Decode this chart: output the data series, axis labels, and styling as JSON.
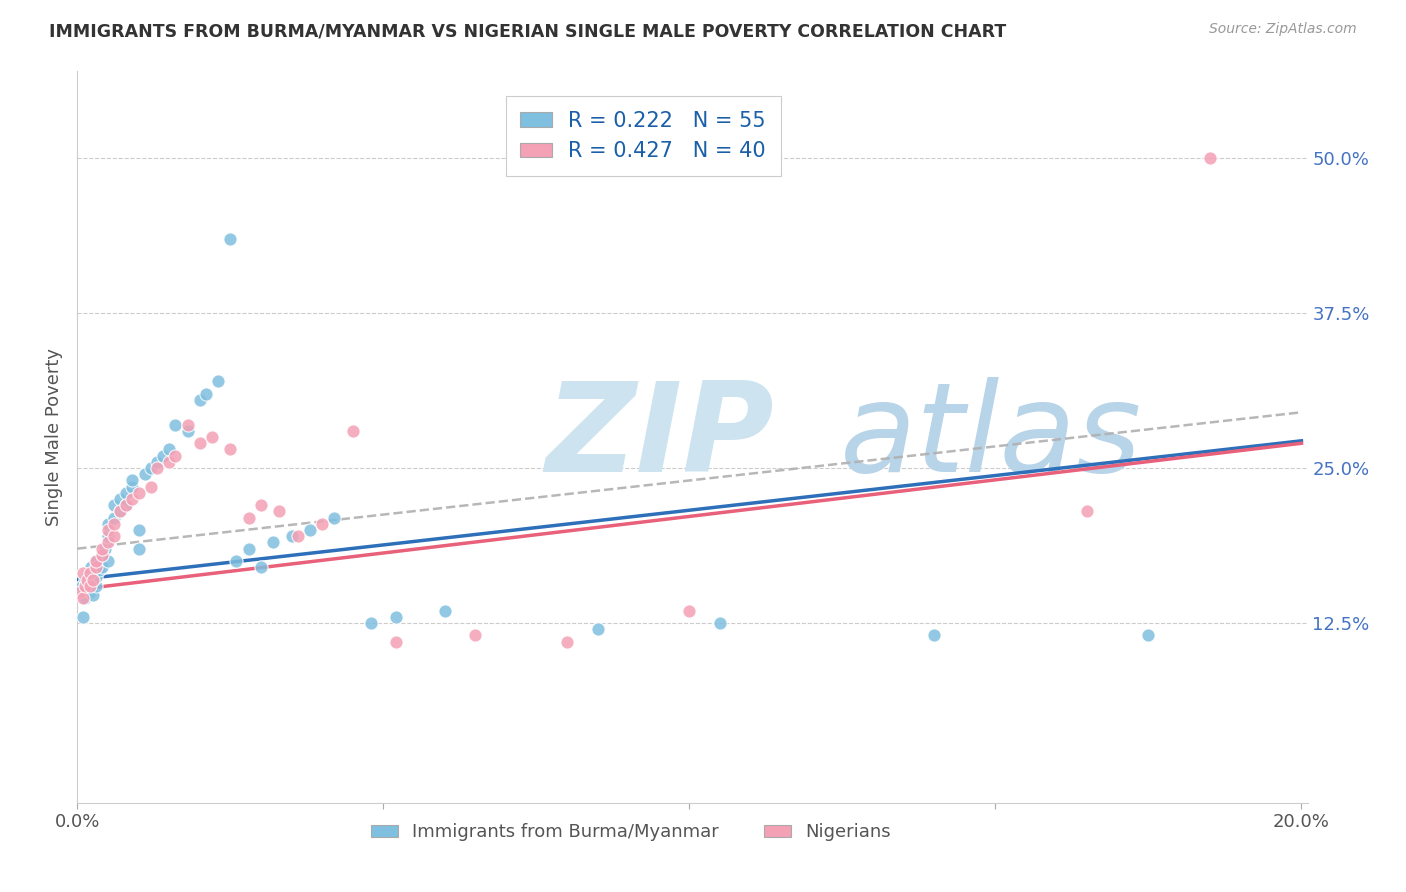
{
  "title": "IMMIGRANTS FROM BURMA/MYANMAR VS NIGERIAN SINGLE MALE POVERTY CORRELATION CHART",
  "source": "Source: ZipAtlas.com",
  "ylabel": "Single Male Poverty",
  "r_blue": 0.222,
  "n_blue": 55,
  "r_pink": 0.427,
  "n_pink": 40,
  "blue_color": "#7fbfdf",
  "pink_color": "#f4a0b5",
  "blue_line_color": "#2e6fba",
  "pink_line_color": "#e8607a",
  "dash_line_color": "#b0b0b0",
  "watermark_zip_color": "#cde4f0",
  "watermark_atlas_color": "#b8d4e8",
  "blue_x": [
    0.0008,
    0.001,
    0.001,
    0.0012,
    0.0013,
    0.0015,
    0.002,
    0.002,
    0.0022,
    0.0025,
    0.003,
    0.003,
    0.003,
    0.0035,
    0.004,
    0.004,
    0.0045,
    0.005,
    0.005,
    0.005,
    0.006,
    0.006,
    0.007,
    0.007,
    0.008,
    0.008,
    0.009,
    0.009,
    0.01,
    0.01,
    0.011,
    0.012,
    0.013,
    0.014,
    0.015,
    0.016,
    0.018,
    0.02,
    0.021,
    0.023,
    0.025,
    0.026,
    0.028,
    0.03,
    0.032,
    0.035,
    0.038,
    0.042,
    0.048,
    0.052,
    0.06,
    0.085,
    0.105,
    0.14,
    0.175
  ],
  "blue_y": [
    0.155,
    0.13,
    0.148,
    0.16,
    0.145,
    0.158,
    0.15,
    0.165,
    0.17,
    0.148,
    0.155,
    0.162,
    0.175,
    0.168,
    0.17,
    0.18,
    0.185,
    0.175,
    0.195,
    0.205,
    0.21,
    0.22,
    0.215,
    0.225,
    0.22,
    0.23,
    0.235,
    0.24,
    0.185,
    0.2,
    0.245,
    0.25,
    0.255,
    0.26,
    0.265,
    0.285,
    0.28,
    0.305,
    0.31,
    0.32,
    0.435,
    0.175,
    0.185,
    0.17,
    0.19,
    0.195,
    0.2,
    0.21,
    0.125,
    0.13,
    0.135,
    0.12,
    0.125,
    0.115,
    0.115
  ],
  "pink_x": [
    0.0005,
    0.001,
    0.001,
    0.0013,
    0.0015,
    0.002,
    0.002,
    0.0025,
    0.003,
    0.003,
    0.004,
    0.004,
    0.005,
    0.005,
    0.006,
    0.006,
    0.007,
    0.008,
    0.009,
    0.01,
    0.012,
    0.013,
    0.015,
    0.016,
    0.018,
    0.02,
    0.022,
    0.025,
    0.028,
    0.03,
    0.033,
    0.036,
    0.04,
    0.045,
    0.052,
    0.065,
    0.08,
    0.1,
    0.165,
    0.185
  ],
  "pink_y": [
    0.15,
    0.145,
    0.165,
    0.155,
    0.16,
    0.155,
    0.165,
    0.16,
    0.17,
    0.175,
    0.18,
    0.185,
    0.19,
    0.2,
    0.195,
    0.205,
    0.215,
    0.22,
    0.225,
    0.23,
    0.235,
    0.25,
    0.255,
    0.26,
    0.285,
    0.27,
    0.275,
    0.265,
    0.21,
    0.22,
    0.215,
    0.195,
    0.205,
    0.28,
    0.11,
    0.115,
    0.11,
    0.135,
    0.215,
    0.5
  ],
  "blue_line_x0": 0.0,
  "blue_line_y0": 0.16,
  "blue_line_x1": 0.2,
  "blue_line_y1": 0.272,
  "pink_line_x0": 0.0,
  "pink_line_y0": 0.152,
  "pink_line_x1": 0.2,
  "pink_line_y1": 0.27,
  "dash_line_x0": 0.0,
  "dash_line_y0": 0.185,
  "dash_line_x1": 0.2,
  "dash_line_y1": 0.295,
  "xlim": [
    0.0,
    0.201
  ],
  "ylim": [
    -0.02,
    0.57
  ],
  "yticks": [
    0.125,
    0.25,
    0.375,
    0.5
  ],
  "ytick_labels": [
    "12.5%",
    "25.0%",
    "37.5%",
    "50.0%"
  ],
  "xticks": [
    0.0,
    0.05,
    0.1,
    0.15,
    0.2
  ],
  "xticklabels": [
    "0.0%",
    "",
    "",
    "",
    "20.0%"
  ]
}
